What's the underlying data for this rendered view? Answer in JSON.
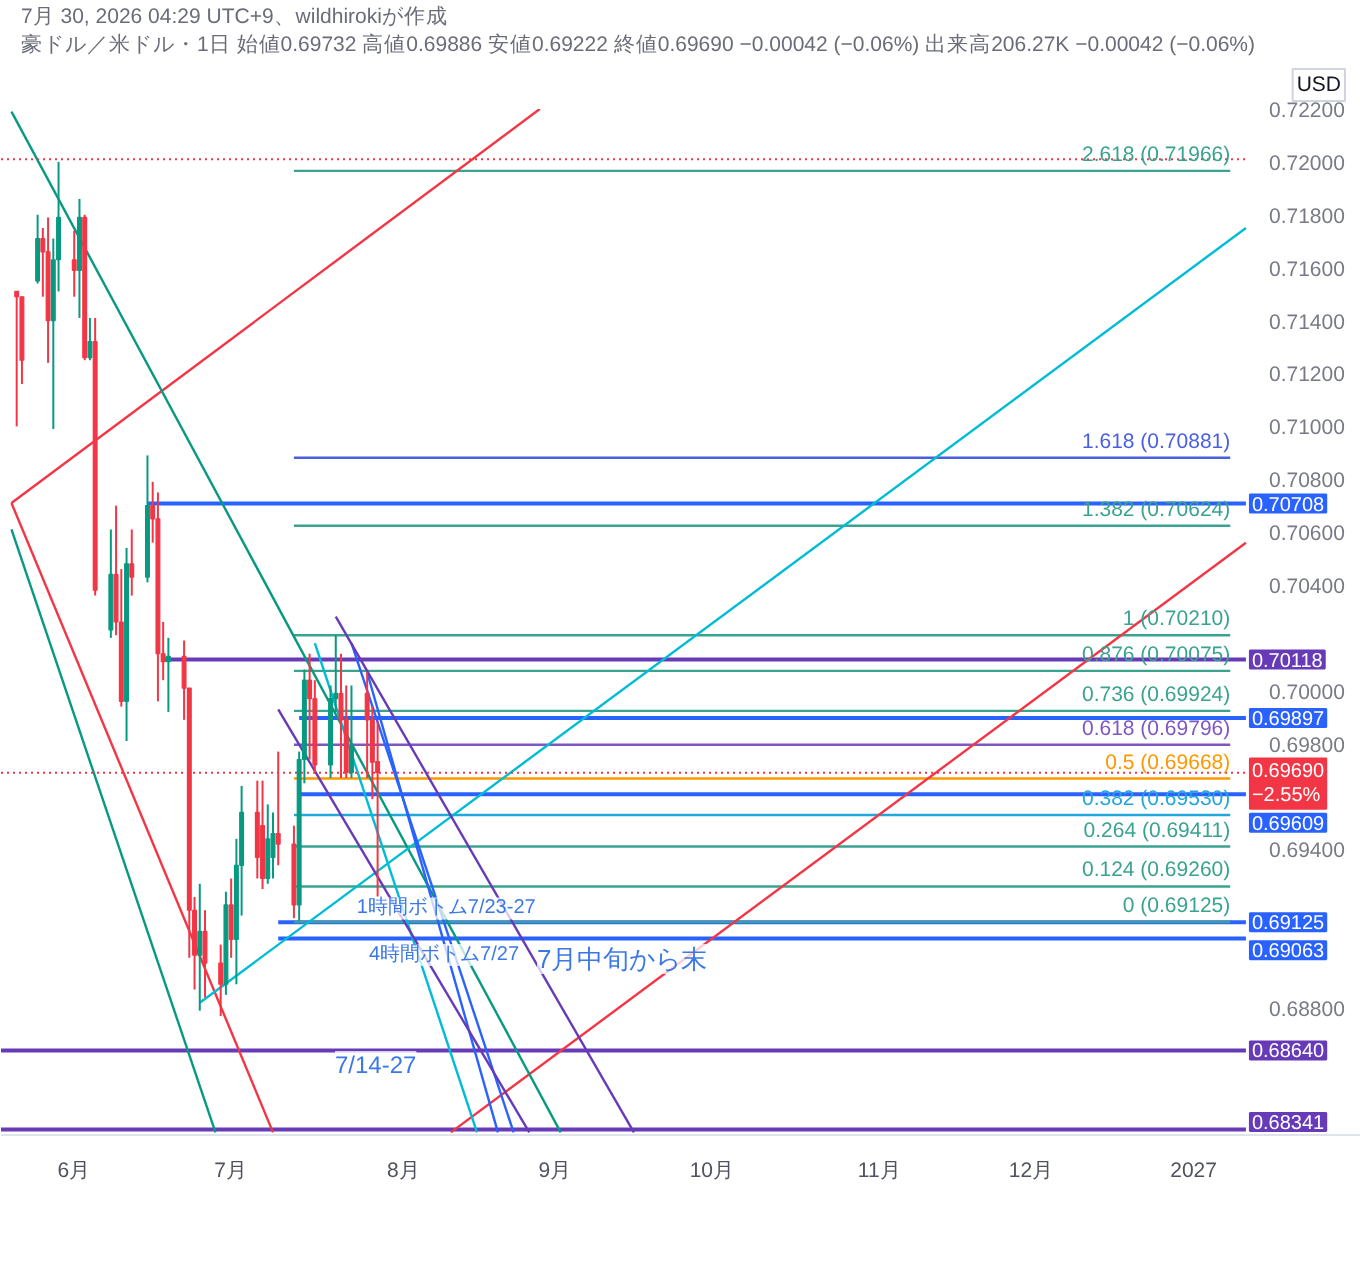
{
  "chart_data": {
    "type": "candlestick",
    "title": "豪ドル／米ドル・1日  始値0.69732  高値0.69886  安値0.69222  終値0.69690  −0.00042 (−0.06%)  出来高206.27K  −0.00042 (−0.06%)",
    "subtitle": "7月 30, 2026 04:29 UTC+9、wildhirokiが作成",
    "ylabel": "USD",
    "legend": "right",
    "annotations": [
      {
        "text": "1時間ボトム7/23-27",
        "x": "2026-07-25",
        "y": 0.6912
      },
      "4時間ボトム7/27",
      "7月中旬から末",
      "7/14-27",
      {
        "text": "2.618 (0.71966)",
        "x": "2027-01-08",
        "y": 0.71966
      },
      {
        "text": "1.618 (0.70881)",
        "x": "2027-01-08",
        "y": 0.70881
      },
      {
        "text": "1.382 (0.70624)",
        "x": "2027-01-08",
        "y": 0.70624
      },
      {
        "text": "1 (0.70210)",
        "x": "2027-01-08",
        "y": 0.7021
      },
      {
        "text": "0.876 (0.70075)",
        "x": "2027-01-08",
        "y": 0.70075
      },
      {
        "text": "0.736 (0.69924)",
        "x": "2027-01-08",
        "y": 0.69924
      },
      {
        "text": "0.618 (0.69796)",
        "x": "2027-01-08",
        "y": 0.69796
      },
      {
        "text": "0.5 (0.69668)",
        "x": "2027-01-08",
        "y": 0.69668
      },
      {
        "text": "0.382 (0.69530)",
        "x": "2027-01-08",
        "y": 0.6953
      },
      {
        "text": "0.264 (0.69411)",
        "x": "2027-01-08",
        "y": 0.69411
      },
      {
        "text": "0.124 (0.69260)",
        "x": "2027-01-08",
        "y": 0.6926
      },
      {
        "text": "0 (0.69125)",
        "x": "2027-01-08",
        "y": 0.69125
      }
    ],
    "x": [
      "2026-05-21",
      "2026-05-22",
      "2026-05-25",
      "2026-05-26",
      "2026-05-27",
      "2026-05-28",
      "2026-05-29",
      "2026-06-01",
      "2026-06-02",
      "2026-06-03",
      "2026-06-04",
      "2026-06-05",
      "2026-06-08",
      "2026-06-09",
      "2026-06-10",
      "2026-06-11",
      "2026-06-12",
      "2026-06-15",
      "2026-06-16",
      "2026-06-17",
      "2026-06-18",
      "2026-06-19",
      "2026-06-22",
      "2026-06-23",
      "2026-06-24",
      "2026-06-25",
      "2026-06-26",
      "2026-06-29",
      "2026-06-30",
      "2026-07-01",
      "2026-07-02",
      "2026-07-03",
      "2026-07-06",
      "2026-07-07",
      "2026-07-08",
      "2026-07-09",
      "2026-07-10",
      "2026-07-13",
      "2026-07-14",
      "2026-07-15",
      "2026-07-16",
      "2026-07-17",
      "2026-07-20",
      "2026-07-21",
      "2026-07-22",
      "2026-07-23",
      "2026-07-24",
      "2026-07-27",
      "2026-07-28",
      "2026-07-29"
    ],
    "ohlc": [
      [
        0.7151,
        0.7151,
        0.71,
        0.7149
      ],
      [
        0.7149,
        0.7149,
        0.7116,
        0.7125
      ],
      [
        0.7155,
        0.718,
        0.7154,
        0.7171
      ],
      [
        0.7171,
        0.7175,
        0.7149,
        0.7166
      ],
      [
        0.7166,
        0.7179,
        0.7124,
        0.714
      ],
      [
        0.714,
        0.7171,
        0.7099,
        0.7163
      ],
      [
        0.7163,
        0.72,
        0.7151,
        0.7179
      ],
      [
        0.7163,
        0.7174,
        0.7149,
        0.7159
      ],
      [
        0.7159,
        0.7186,
        0.7141,
        0.7179
      ],
      [
        0.7179,
        0.718,
        0.7125,
        0.7126
      ],
      [
        0.7126,
        0.7141,
        0.7125,
        0.7132
      ],
      [
        0.7132,
        0.7141,
        0.7036,
        0.7038
      ],
      [
        0.7023,
        0.7061,
        0.702,
        0.7044
      ],
      [
        0.7044,
        0.707,
        0.7021,
        0.7026
      ],
      [
        0.7026,
        0.7046,
        0.6994,
        0.6996
      ],
      [
        0.6996,
        0.7054,
        0.6981,
        0.7048
      ],
      [
        0.7048,
        0.7061,
        0.7036,
        0.7043
      ],
      [
        0.7043,
        0.7089,
        0.7041,
        0.707
      ],
      [
        0.707,
        0.7079,
        0.7056,
        0.7065
      ],
      [
        0.7065,
        0.7075,
        0.6996,
        0.7014
      ],
      [
        0.7014,
        0.7026,
        0.7004,
        0.7011
      ],
      [
        0.7011,
        0.702,
        0.6992,
        0.7013
      ],
      [
        0.7013,
        0.7019,
        0.6989,
        0.7001
      ],
      [
        0.7001,
        0.7001,
        0.6899,
        0.6917
      ],
      [
        0.6917,
        0.6922,
        0.6887,
        0.69
      ],
      [
        0.69,
        0.6927,
        0.6879,
        0.6909
      ],
      [
        0.6909,
        0.6917,
        0.6884,
        0.6897
      ],
      [
        0.6897,
        0.6904,
        0.6877,
        0.6889
      ],
      [
        0.6889,
        0.6924,
        0.6885,
        0.6919
      ],
      [
        0.6919,
        0.6929,
        0.6899,
        0.6906
      ],
      [
        0.6906,
        0.6944,
        0.6889,
        0.6934
      ],
      [
        0.6934,
        0.6964,
        0.6915,
        0.6954
      ],
      [
        0.6954,
        0.6966,
        0.6929,
        0.6937
      ],
      [
        0.6949,
        0.6966,
        0.6925,
        0.6929
      ],
      [
        0.6929,
        0.6957,
        0.6927,
        0.6944
      ],
      [
        0.6937,
        0.6954,
        0.6929,
        0.6946
      ],
      [
        0.6946,
        0.6977,
        0.6934,
        0.6942
      ],
      [
        0.6942,
        0.6949,
        0.6914,
        0.6919
      ],
      [
        0.6919,
        0.6977,
        0.6913,
        0.6974
      ],
      [
        0.6974,
        0.7008,
        0.6965,
        0.7004
      ],
      [
        0.7004,
        0.7014,
        0.6974,
        0.6997
      ],
      [
        0.6997,
        0.7004,
        0.6969,
        0.6972
      ],
      [
        0.6972,
        0.7002,
        0.6967,
        0.6997
      ],
      [
        0.6997,
        0.7021,
        0.6992,
        0.6999
      ],
      [
        0.6999,
        0.7014,
        0.6967,
        0.6989
      ],
      [
        0.6989,
        0.7002,
        0.6967,
        0.6969
      ],
      [
        0.6969,
        0.7002,
        0.6967,
        0.6979
      ],
      [
        0.6999,
        0.7007,
        0.6967,
        0.6989
      ],
      [
        0.6989,
        0.6994,
        0.6959,
        0.6973
      ],
      [
        0.69732,
        0.69886,
        0.69222,
        0.6969
      ]
    ],
    "colors": [
      "#f23645",
      "#f23645",
      "#089981",
      "#f23645",
      "#f23645",
      "#089981",
      "#089981",
      "#f23645",
      "#089981",
      "#f23645",
      "#089981",
      "#f23645",
      "#089981",
      "#f23645",
      "#f23645",
      "#089981",
      "#f23645",
      "#089981",
      "#f23645",
      "#f23645",
      "#f23645",
      "#089981",
      "#f23645",
      "#f23645",
      "#f23645",
      "#089981",
      "#f23645",
      "#f23645",
      "#089981",
      "#f23645",
      "#089981",
      "#089981",
      "#f23645",
      "#f23645",
      "#089981",
      "#089981",
      "#f23645",
      "#f23645",
      "#089981",
      "#089981",
      "#f23645",
      "#f23645",
      "#089981",
      "#089981",
      "#f23645",
      "#f23645",
      "#089981",
      "#f23645",
      "#f23645",
      "#f23645"
    ],
    "series": [
      {
        "type": "line",
        "name": "0.70708",
        "color": "#2962ff",
        "x": [
          "2026-06-15",
          "2027-01-11"
        ],
        "values": [
          0.70708,
          0.70708
        ]
      },
      {
        "type": "line",
        "name": "0.70118",
        "color": "#673ab7",
        "x": [
          "2026-06-18",
          "2027-01-11"
        ],
        "values": [
          0.70118,
          0.70118
        ]
      },
      {
        "type": "line",
        "name": "0.69897",
        "color": "#2962ff",
        "x": [
          "2026-07-14",
          "2027-01-11"
        ],
        "values": [
          0.69897,
          0.69897
        ]
      },
      {
        "type": "line",
        "name": "0.69609",
        "color": "#2962ff",
        "x": [
          "2026-07-14",
          "2027-01-11"
        ],
        "values": [
          0.69609,
          0.69609
        ]
      },
      {
        "type": "line",
        "name": "0.69125",
        "color": "#2962ff",
        "x": [
          "2026-07-10",
          "2027-01-11"
        ],
        "values": [
          0.69125,
          0.69125
        ]
      },
      {
        "type": "line",
        "name": "0.69063",
        "color": "#2962ff",
        "x": [
          "2026-07-10",
          "2027-01-11"
        ],
        "values": [
          0.69063,
          0.69063
        ]
      },
      {
        "type": "line",
        "name": "0.68640",
        "color": "#673ab7",
        "x": [
          "2026-05-18",
          "2027-01-11"
        ],
        "values": [
          0.6864,
          0.6864
        ]
      },
      {
        "type": "line",
        "name": "0.68341",
        "color": "#673ab7",
        "x": [
          "2026-05-18",
          "2027-01-11"
        ],
        "values": [
          0.68341,
          0.68341
        ]
      },
      {
        "type": "line",
        "color": "#3aa38f",
        "x": [
          "2026-07-13",
          "2027-01-08"
        ],
        "values": [
          0.71966,
          0.71966
        ]
      },
      {
        "type": "line",
        "color": "#4a5fe0",
        "x": [
          "2026-07-13",
          "2027-01-08"
        ],
        "values": [
          0.70881,
          0.70881
        ]
      },
      {
        "type": "line",
        "color": "#3aa38f",
        "x": [
          "2026-07-13",
          "2027-01-08"
        ],
        "values": [
          0.70624,
          0.70624
        ]
      },
      {
        "type": "line",
        "color": "#3aa38f",
        "x": [
          "2026-07-13",
          "2027-01-08"
        ],
        "values": [
          0.7021,
          0.7021
        ]
      },
      {
        "type": "line",
        "color": "#3aa38f",
        "x": [
          "2026-07-13",
          "2027-01-08"
        ],
        "values": [
          0.70075,
          0.70075
        ]
      },
      {
        "type": "line",
        "color": "#3aa38f",
        "x": [
          "2026-07-13",
          "2027-01-08"
        ],
        "values": [
          0.69924,
          0.69924
        ]
      },
      {
        "type": "line",
        "color": "#7e57c2",
        "x": [
          "2026-07-13",
          "2027-01-08"
        ],
        "values": [
          0.69796,
          0.69796
        ]
      },
      {
        "type": "line",
        "color": "#ff9800",
        "x": [
          "2026-07-13",
          "2027-01-08"
        ],
        "values": [
          0.69668,
          0.69668
        ]
      },
      {
        "type": "line",
        "color": "#22a7dd",
        "x": [
          "2026-07-13",
          "2027-01-08"
        ],
        "values": [
          0.6953,
          0.6953
        ]
      },
      {
        "type": "line",
        "color": "#3aa38f",
        "x": [
          "2026-07-13",
          "2027-01-08"
        ],
        "values": [
          0.69411,
          0.69411
        ]
      },
      {
        "type": "line",
        "color": "#3aa38f",
        "x": [
          "2026-07-13",
          "2027-01-08"
        ],
        "values": [
          0.6926,
          0.6926
        ]
      },
      {
        "type": "line",
        "color": "#3aa38f",
        "x": [
          "2026-07-13",
          "2027-01-08"
        ],
        "values": [
          0.69125,
          0.69125
        ]
      },
      {
        "type": "line",
        "color": "#f23645",
        "x": [
          "2026-05-20",
          "2026-08-29"
        ],
        "values": [
          0.7071,
          0.722
        ]
      },
      {
        "type": "line",
        "color": "#f23645",
        "x": [
          "2026-08-12",
          "2027-01-11"
        ],
        "values": [
          0.6833,
          0.7056
        ]
      },
      {
        "type": "line",
        "color": "#f23645",
        "x": [
          "2026-05-20",
          "2026-07-09"
        ],
        "values": [
          0.7071,
          0.6833
        ]
      },
      {
        "type": "line",
        "color": "#089981",
        "x": [
          "2026-05-20",
          "2026-09-02"
        ],
        "values": [
          0.7219,
          0.6833
        ]
      },
      {
        "type": "line",
        "color": "#089981",
        "x": [
          "2026-05-20",
          "2026-06-28"
        ],
        "values": [
          0.7061,
          0.6833
        ]
      },
      {
        "type": "line",
        "color": "#00bcd4",
        "x": [
          "2026-06-25",
          "2027-01-11"
        ],
        "values": [
          0.6882,
          0.7175
        ]
      },
      {
        "type": "line",
        "color": "#00bcd4",
        "x": [
          "2026-07-17",
          "2026-08-17"
        ],
        "values": [
          0.7018,
          0.6833
        ]
      },
      {
        "type": "line",
        "color": "#2962ff",
        "x": [
          "2026-07-27",
          "2026-08-21"
        ],
        "values": [
          0.7007,
          0.6833
        ]
      },
      {
        "type": "line",
        "color": "#2962ff",
        "x": [
          "2026-07-24",
          "2026-08-24"
        ],
        "values": [
          0.7018,
          0.6833
        ]
      },
      {
        "type": "line",
        "color": "#673ab7",
        "x": [
          "2026-07-10",
          "2026-08-27"
        ],
        "values": [
          0.6993,
          0.6833
        ]
      },
      {
        "type": "line",
        "color": "#673ab7",
        "x": [
          "2026-07-21",
          "2026-09-16"
        ],
        "values": [
          0.7028,
          0.6833
        ]
      }
    ],
    "ref_lines": [
      {
        "axis": "y",
        "value": 0.6969,
        "label": "0.69690\n−2.55%",
        "color": "#f23645",
        "line_style": "dotted"
      },
      {
        "axis": "y",
        "value": 0.7201,
        "color": "#f23645",
        "line_style": "dotted"
      }
    ],
    "xlim": [
      "2026-05-18",
      "2027-02-02"
    ],
    "ylim": [
      0.6832,
      0.722
    ],
    "xticks": [
      {
        "value": "2026-06-01",
        "label": "6月"
      },
      {
        "value": "2026-07-01",
        "label": "7月"
      },
      {
        "value": "2026-08-03",
        "label": "8月"
      },
      {
        "value": "2026-09-01",
        "label": "9月"
      },
      {
        "value": "2026-10-01",
        "label": "10月"
      },
      {
        "value": "2026-11-02",
        "label": "11月"
      },
      {
        "value": "2026-12-01",
        "label": "12月"
      },
      {
        "value": "2027-01-01",
        "label": "2027"
      }
    ],
    "yticks": [
      {
        "value": 0.722,
        "label": "0.72200"
      },
      {
        "value": 0.72,
        "label": "0.72000"
      },
      {
        "value": 0.718,
        "label": "0.71800"
      },
      {
        "value": 0.716,
        "label": "0.71600"
      },
      {
        "value": 0.714,
        "label": "0.71400"
      },
      {
        "value": 0.712,
        "label": "0.71200"
      },
      {
        "value": 0.71,
        "label": "0.71000"
      },
      {
        "value": 0.708,
        "label": "0.70800"
      },
      {
        "value": 0.706,
        "label": "0.70600"
      },
      {
        "value": 0.704,
        "label": "0.70400"
      },
      {
        "value": 0.7,
        "label": "0.70000"
      },
      {
        "value": 0.698,
        "label": "0.69800"
      },
      {
        "value": 0.694,
        "label": "0.69400"
      },
      {
        "value": 0.688,
        "label": "0.68800"
      }
    ]
  }
}
